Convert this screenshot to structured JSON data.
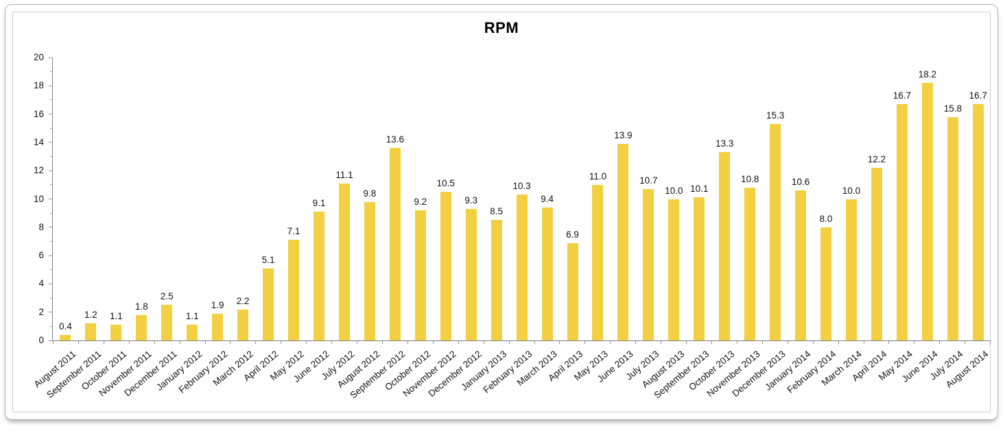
{
  "chart_data": {
    "type": "bar",
    "title": "RPM",
    "categories": [
      "August 2011",
      "September 2011",
      "October 2011",
      "November 2011",
      "December 2011",
      "January 2012",
      "February 2012",
      "March 2012",
      "April 2012",
      "May 2012",
      "June 2012",
      "July 2012",
      "August 2012",
      "September 2012",
      "October 2012",
      "November 2012",
      "December 2012",
      "January 2013",
      "February 2013",
      "March 2013",
      "April 2013",
      "May 2013",
      "June 2013",
      "July 2013",
      "August 2013",
      "September 2013",
      "October 2013",
      "November 2013",
      "December 2013",
      "January 2014",
      "February 2014",
      "March 2014",
      "April 2014",
      "May 2014",
      "June 2014",
      "July 2014",
      "August 2014"
    ],
    "values": [
      0.4,
      1.2,
      1.1,
      1.8,
      2.5,
      1.1,
      1.9,
      2.2,
      5.1,
      7.1,
      9.1,
      11.1,
      9.8,
      13.6,
      9.2,
      10.5,
      9.3,
      8.5,
      10.3,
      9.4,
      6.9,
      11.0,
      13.9,
      10.7,
      10.0,
      10.1,
      13.3,
      10.8,
      15.3,
      10.6,
      8.0,
      10.0,
      12.2,
      16.7,
      18.2,
      15.8,
      16.7
    ],
    "value_label_decimals": 1,
    "xlabel": "",
    "ylabel": "",
    "ylim": [
      0,
      20
    ],
    "ytick_major_step": 2,
    "ytick_minor_step": 1,
    "grid": false,
    "legend": false,
    "bar_color": "#F2D042",
    "axis_color": "#7f7f7f",
    "text_color": "#111111"
  }
}
